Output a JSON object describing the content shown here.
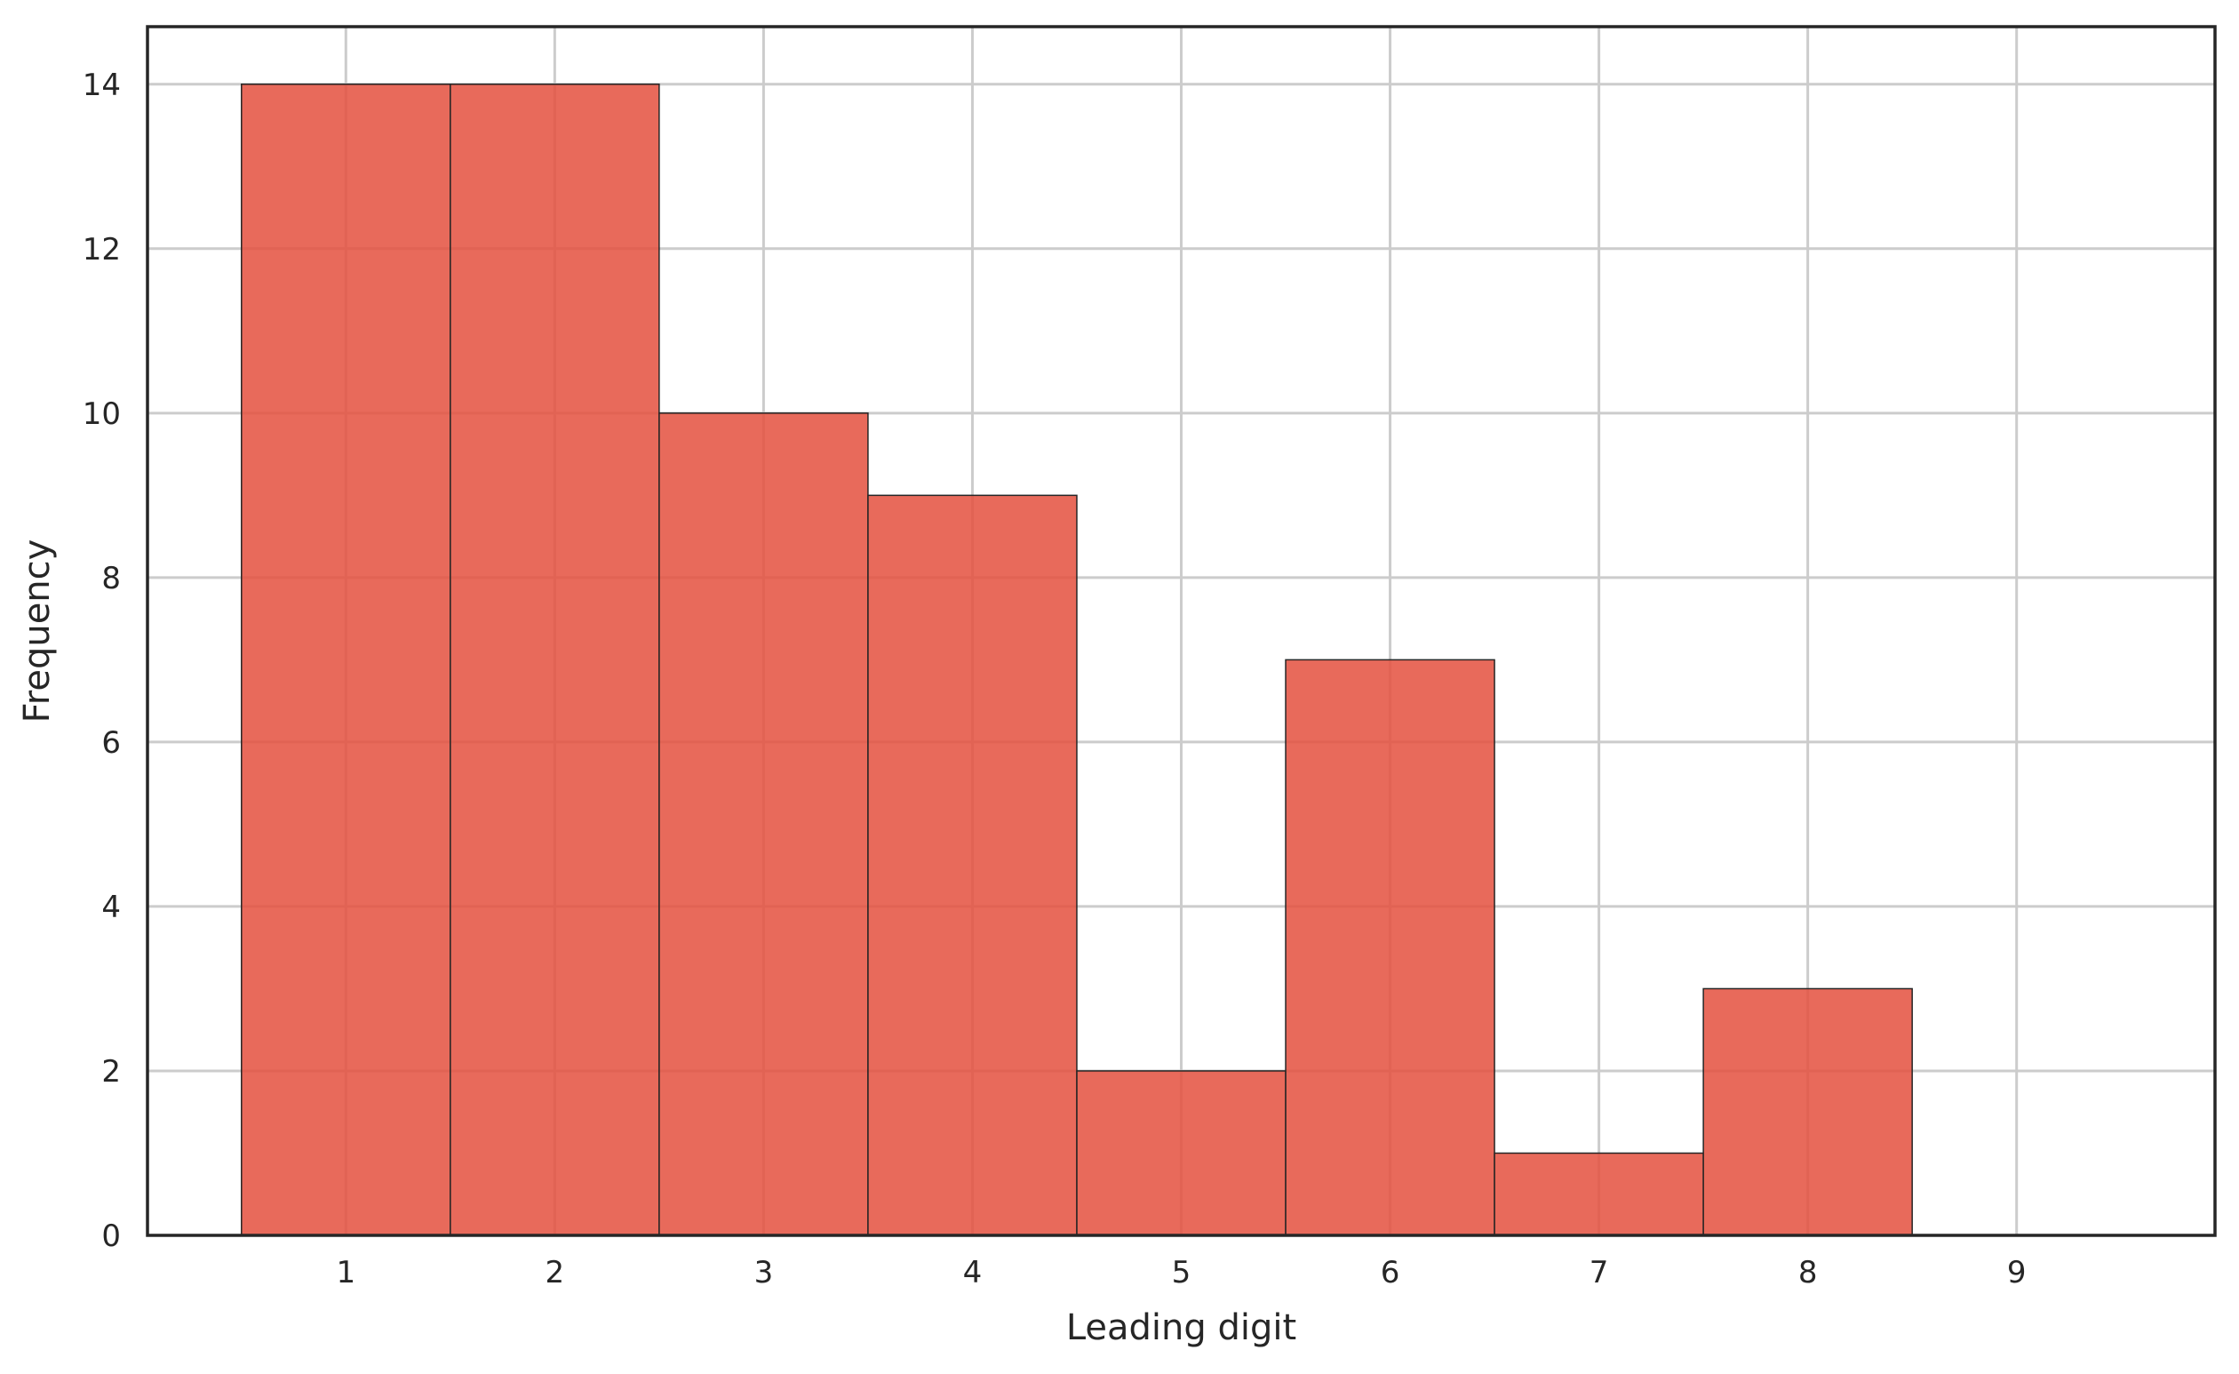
{
  "chart_data": {
    "type": "bar",
    "title": "",
    "xlabel": "Leading digit",
    "ylabel": "Frequency",
    "categories": [
      "1",
      "2",
      "3",
      "4",
      "5",
      "6",
      "7",
      "8",
      "9"
    ],
    "x": [
      1,
      2,
      3,
      4,
      5,
      6,
      7,
      8,
      9
    ],
    "values": [
      14,
      14,
      10,
      9,
      2,
      7,
      1,
      3,
      0
    ],
    "xlim": [
      0.05,
      9.95
    ],
    "ylim": [
      0,
      14.7
    ],
    "yticks": [
      0,
      2,
      4,
      6,
      8,
      10,
      12,
      14
    ],
    "xticks": [
      1,
      2,
      3,
      4,
      5,
      6,
      7,
      8,
      9
    ],
    "grid": true,
    "legend": "none",
    "colors": {
      "bar_fill": "#e4503e",
      "bar_edge": "#262626",
      "grid": "#cccccc",
      "frame": "#262626",
      "text": "#262626"
    }
  }
}
